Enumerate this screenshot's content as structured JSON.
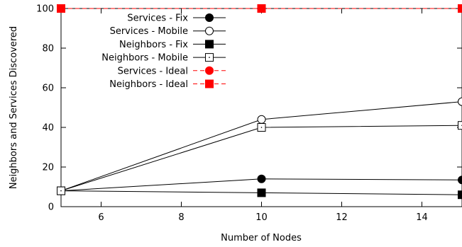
{
  "chart_data": {
    "type": "line",
    "xlabel": "Number of Nodes",
    "ylabel": "Neighbors and Services Discovered",
    "xlim": [
      5,
      15
    ],
    "ylim": [
      0,
      100
    ],
    "xticks": [
      6,
      8,
      10,
      12,
      14
    ],
    "yticks": [
      0,
      20,
      40,
      60,
      80,
      100
    ],
    "grid": false,
    "legend_position": "top-left",
    "series": [
      {
        "name": "Services - Fix",
        "x": [
          5,
          10,
          15
        ],
        "y": [
          8,
          14,
          13.5
        ],
        "marker": "circle",
        "filled": true,
        "color": "#000000",
        "dashed": false
      },
      {
        "name": "Services - Mobile",
        "x": [
          5,
          10,
          15
        ],
        "y": [
          8,
          44,
          53
        ],
        "marker": "circle",
        "filled": false,
        "color": "#000000",
        "dashed": false
      },
      {
        "name": "Neighbors - Fix",
        "x": [
          5,
          10,
          15
        ],
        "y": [
          8,
          7,
          6
        ],
        "marker": "square",
        "filled": true,
        "color": "#000000",
        "dashed": false
      },
      {
        "name": "Neighbors - Mobile",
        "x": [
          5,
          10,
          15
        ],
        "y": [
          8,
          40,
          41
        ],
        "marker": "square",
        "filled": false,
        "color": "#000000",
        "dashed": false
      },
      {
        "name": "Services - Ideal",
        "x": [
          5,
          10,
          15
        ],
        "y": [
          100,
          100,
          100
        ],
        "marker": "circle",
        "filled": true,
        "color": "#ff0000",
        "dashed": true
      },
      {
        "name": "Neighbors - Ideal",
        "x": [
          5,
          10,
          15
        ],
        "y": [
          100,
          100,
          100
        ],
        "marker": "square",
        "filled": true,
        "color": "#ff0000",
        "dashed": true
      }
    ]
  }
}
